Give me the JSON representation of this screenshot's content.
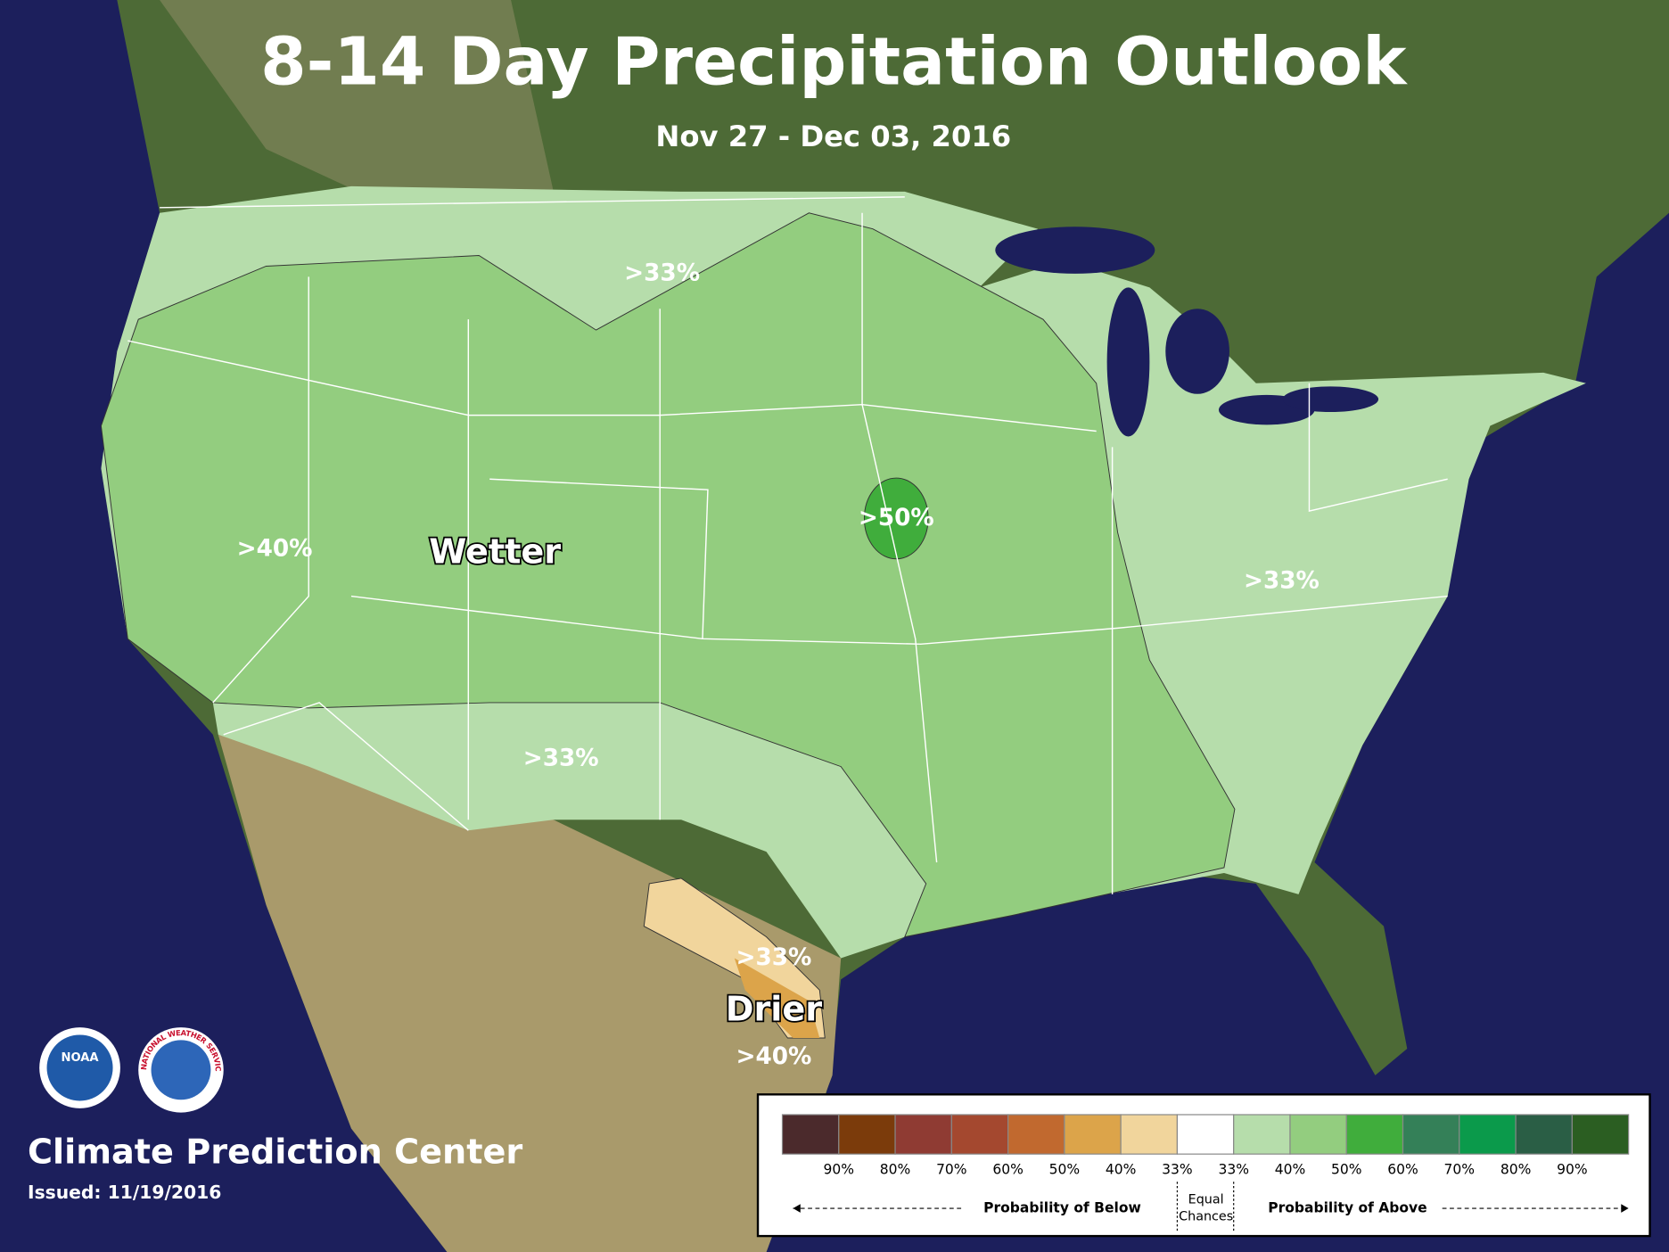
{
  "header": {
    "title": "8-14 Day Precipitation Outlook",
    "subtitle": "Nov 27 - Dec 03, 2016"
  },
  "map": {
    "labels": [
      ">33%",
      ">33%",
      ">40%",
      ">50%",
      ">33%",
      "Wetter",
      ">33%",
      "Drier",
      ">40%"
    ]
  },
  "logos": {
    "noaa": "NOAA",
    "nws": "NATIONAL WEATHER SERVICE"
  },
  "footer": {
    "org": "Climate Prediction Center",
    "issued": "Issued: 11/19/2016"
  },
  "legend": {
    "colors": [
      "#4b2a2c",
      "#7b3b0b",
      "#8f3b33",
      "#a4482f",
      "#c1692f",
      "#dca44a",
      "#f1d59c",
      "#ffffff",
      "#b6ddab",
      "#93cd7f",
      "#40ad3c",
      "#348058",
      "#0b9a4b",
      "#2a5e45",
      "#2b5e22"
    ],
    "labels": [
      "90%",
      "80%",
      "70%",
      "60%",
      "50%",
      "40%",
      "33%",
      "33%",
      "40%",
      "50%",
      "60%",
      "70%",
      "80%",
      "90%"
    ],
    "below": "Probability of Below",
    "equal": [
      "Equal",
      "Chances"
    ],
    "above": "Probability of Above"
  }
}
